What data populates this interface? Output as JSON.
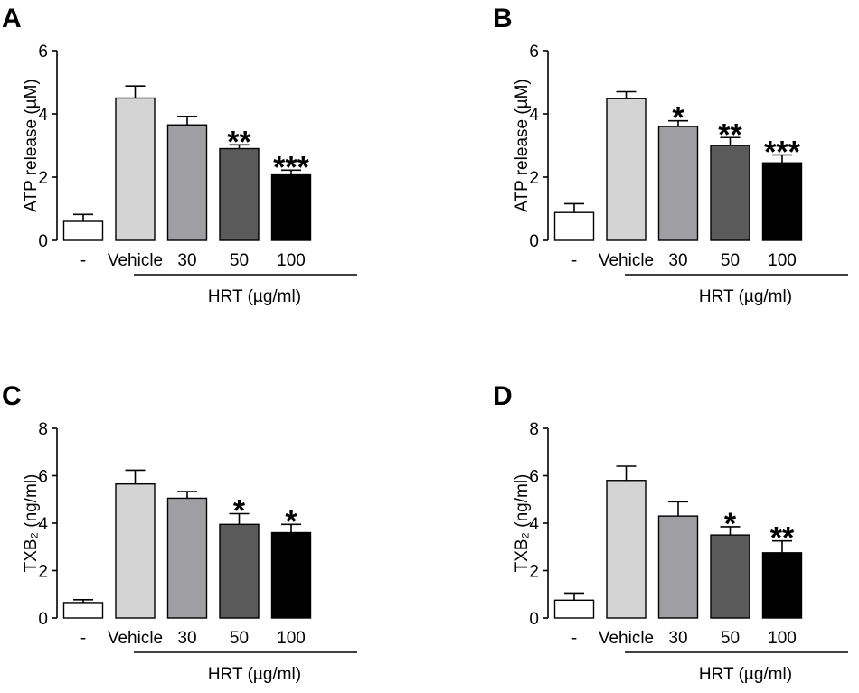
{
  "chart_data": [
    {
      "panel": "A",
      "type": "bar",
      "ylabel": "ATP release (µM)",
      "ylim": [
        0,
        6
      ],
      "yticks": [
        0,
        2,
        4,
        6
      ],
      "categories": [
        "-",
        "Vehicle",
        "30",
        "50",
        "100"
      ],
      "values": [
        0.6,
        4.5,
        3.65,
        2.9,
        2.07
      ],
      "errors": [
        0.22,
        0.38,
        0.27,
        0.12,
        0.15
      ],
      "colors": [
        "#ffffff",
        "#d4d4d4",
        "#9f9fa3",
        "#5a5a5a",
        "#000000"
      ],
      "significance": [
        "",
        "",
        "",
        "**",
        "***"
      ],
      "group_label": "HRT (µg/ml)"
    },
    {
      "panel": "B",
      "type": "bar",
      "ylabel": "ATP release (µM)",
      "ylim": [
        0,
        6
      ],
      "yticks": [
        0,
        2,
        4,
        6
      ],
      "categories": [
        "-",
        "Vehicle",
        "30",
        "50",
        "100"
      ],
      "values": [
        0.88,
        4.48,
        3.6,
        3.0,
        2.45
      ],
      "errors": [
        0.28,
        0.22,
        0.18,
        0.25,
        0.25
      ],
      "colors": [
        "#ffffff",
        "#d4d4d4",
        "#9f9fa3",
        "#5a5a5a",
        "#000000"
      ],
      "significance": [
        "",
        "",
        "*",
        "**",
        "***"
      ],
      "group_label": "HRT (µg/ml)"
    },
    {
      "panel": "C",
      "type": "bar",
      "ylabel": "TXB₂ (ng/ml)",
      "ylim": [
        0,
        8
      ],
      "yticks": [
        0,
        2,
        4,
        6,
        8
      ],
      "categories": [
        "-",
        "Vehicle",
        "30",
        "50",
        "100"
      ],
      "values": [
        0.65,
        5.65,
        5.05,
        3.95,
        3.6
      ],
      "errors": [
        0.12,
        0.58,
        0.28,
        0.45,
        0.35
      ],
      "colors": [
        "#ffffff",
        "#d4d4d4",
        "#9f9fa3",
        "#5a5a5a",
        "#000000"
      ],
      "significance": [
        "",
        "",
        "",
        "*",
        "*"
      ],
      "group_label": "HRT (µg/ml)"
    },
    {
      "panel": "D",
      "type": "bar",
      "ylabel": "TXB₂ (ng/ml)",
      "ylim": [
        0,
        8
      ],
      "yticks": [
        0,
        2,
        4,
        6,
        8
      ],
      "categories": [
        "-",
        "Vehicle",
        "30",
        "50",
        "100"
      ],
      "values": [
        0.75,
        5.8,
        4.3,
        3.5,
        2.75
      ],
      "errors": [
        0.3,
        0.6,
        0.6,
        0.35,
        0.5
      ],
      "colors": [
        "#ffffff",
        "#d4d4d4",
        "#9f9fa3",
        "#5a5a5a",
        "#000000"
      ],
      "significance": [
        "",
        "",
        "",
        "*",
        "**"
      ],
      "group_label": "HRT (µg/ml)"
    }
  ]
}
